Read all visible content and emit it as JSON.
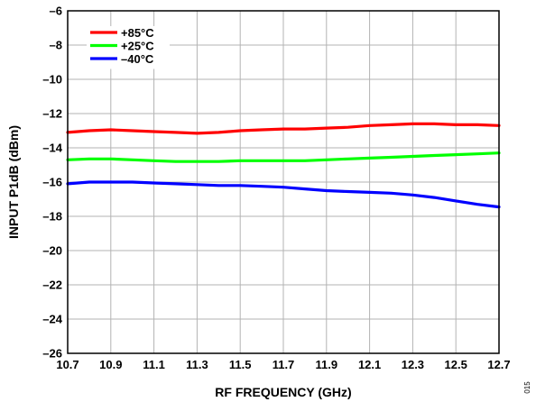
{
  "chart_data": {
    "type": "line",
    "title": "",
    "xlabel": "RF FREQUENCY (GHz)",
    "ylabel": "INPUT P1dB (dBm)",
    "xlim": [
      10.7,
      12.7
    ],
    "ylim": [
      -26,
      -6
    ],
    "x_ticks": [
      10.7,
      10.9,
      11.1,
      11.3,
      11.5,
      11.7,
      11.9,
      12.1,
      12.3,
      12.5,
      12.7
    ],
    "x_tick_labels": [
      "10.7",
      "10.9",
      "11.1",
      "11.3",
      "11.5",
      "11.7",
      "11.9",
      "12.1",
      "12.3",
      "12.5",
      "12.7"
    ],
    "y_ticks": [
      -6,
      -8,
      -10,
      -12,
      -14,
      -16,
      -18,
      -20,
      -22,
      -24,
      -26
    ],
    "y_tick_labels": [
      "–6",
      "–8",
      "–10",
      "–12",
      "–14",
      "–16",
      "–18",
      "–20",
      "–22",
      "–24",
      "–26"
    ],
    "grid": true,
    "legend_position": "top-left",
    "side_code": "015",
    "x": [
      10.7,
      10.8,
      10.9,
      11.0,
      11.1,
      11.2,
      11.3,
      11.4,
      11.5,
      11.6,
      11.7,
      11.8,
      11.9,
      12.0,
      12.1,
      12.2,
      12.3,
      12.4,
      12.5,
      12.6,
      12.7
    ],
    "series": [
      {
        "name": "+85°C",
        "color": "#ff0000",
        "values": [
          -13.1,
          -13.0,
          -12.95,
          -13.0,
          -13.05,
          -13.1,
          -13.15,
          -13.1,
          -13.0,
          -12.95,
          -12.9,
          -12.9,
          -12.85,
          -12.8,
          -12.7,
          -12.65,
          -12.6,
          -12.6,
          -12.65,
          -12.65,
          -12.7
        ]
      },
      {
        "name": "+25°C",
        "color": "#00ff00",
        "values": [
          -14.7,
          -14.65,
          -14.65,
          -14.7,
          -14.75,
          -14.8,
          -14.8,
          -14.8,
          -14.75,
          -14.75,
          -14.75,
          -14.75,
          -14.7,
          -14.65,
          -14.6,
          -14.55,
          -14.5,
          -14.45,
          -14.4,
          -14.35,
          -14.3
        ]
      },
      {
        "name": "–40°C",
        "color": "#0000ff",
        "values": [
          -16.1,
          -16.0,
          -16.0,
          -16.0,
          -16.05,
          -16.1,
          -16.15,
          -16.2,
          -16.2,
          -16.25,
          -16.3,
          -16.4,
          -16.5,
          -16.55,
          -16.6,
          -16.65,
          -16.75,
          -16.9,
          -17.1,
          -17.3,
          -17.45
        ]
      }
    ]
  }
}
